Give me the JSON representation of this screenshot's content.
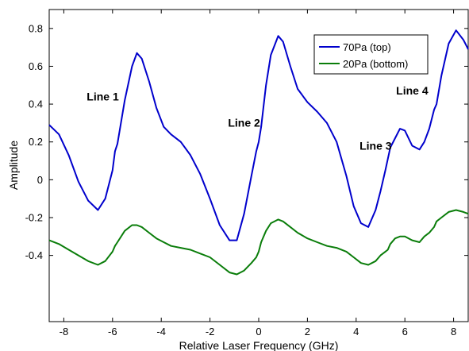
{
  "chart_data": {
    "type": "line",
    "xlabel": "Relative Laser Frequency (GHz)",
    "ylabel": "Amplitude",
    "xlim": [
      -8.6,
      8.6
    ],
    "ylim": [
      -0.75,
      0.9
    ],
    "xticks": [
      -8,
      -6,
      -4,
      -2,
      0,
      2,
      4,
      6,
      8
    ],
    "yticks": [
      -0.4,
      -0.2,
      0,
      0.2,
      0.4,
      0.6,
      0.8
    ],
    "grid": false,
    "legend_position": "top-right",
    "series": [
      {
        "name": "70Pa (top)",
        "color": "#0000cc",
        "x": [
          -8.6,
          -8.2,
          -7.8,
          -7.4,
          -7.0,
          -6.6,
          -6.3,
          -6.0,
          -5.9,
          -5.8,
          -5.5,
          -5.2,
          -5.0,
          -4.8,
          -4.5,
          -4.2,
          -3.9,
          -3.6,
          -3.2,
          -2.8,
          -2.4,
          -2.0,
          -1.6,
          -1.2,
          -0.9,
          -0.6,
          -0.3,
          -0.1,
          0.0,
          0.1,
          0.3,
          0.5,
          0.8,
          1.0,
          1.3,
          1.6,
          2.0,
          2.4,
          2.8,
          3.2,
          3.6,
          3.9,
          4.2,
          4.5,
          4.8,
          5.0,
          5.2,
          5.3,
          5.4,
          5.6,
          5.8,
          6.0,
          6.3,
          6.6,
          6.8,
          7.0,
          7.2,
          7.3,
          7.5,
          7.8,
          8.1,
          8.4,
          8.6
        ],
        "y": [
          0.29,
          0.24,
          0.13,
          -0.01,
          -0.11,
          -0.16,
          -0.1,
          0.05,
          0.15,
          0.19,
          0.42,
          0.6,
          0.67,
          0.64,
          0.52,
          0.38,
          0.28,
          0.24,
          0.2,
          0.13,
          0.03,
          -0.1,
          -0.24,
          -0.32,
          -0.32,
          -0.18,
          0.02,
          0.15,
          0.2,
          0.28,
          0.5,
          0.66,
          0.76,
          0.73,
          0.6,
          0.48,
          0.41,
          0.36,
          0.3,
          0.2,
          0.02,
          -0.14,
          -0.23,
          -0.25,
          -0.16,
          -0.06,
          0.05,
          0.11,
          0.17,
          0.22,
          0.27,
          0.26,
          0.18,
          0.16,
          0.2,
          0.27,
          0.37,
          0.4,
          0.55,
          0.72,
          0.79,
          0.74,
          0.69
        ]
      },
      {
        "name": "20Pa (bottom)",
        "color": "#0a7d0a",
        "x": [
          -8.6,
          -8.2,
          -7.8,
          -7.4,
          -7.0,
          -6.6,
          -6.3,
          -6.0,
          -5.9,
          -5.8,
          -5.5,
          -5.2,
          -5.0,
          -4.8,
          -4.5,
          -4.2,
          -3.9,
          -3.6,
          -3.2,
          -2.8,
          -2.4,
          -2.0,
          -1.6,
          -1.2,
          -0.9,
          -0.6,
          -0.3,
          -0.1,
          0.0,
          0.1,
          0.3,
          0.5,
          0.8,
          1.0,
          1.3,
          1.6,
          2.0,
          2.4,
          2.8,
          3.2,
          3.6,
          3.9,
          4.2,
          4.5,
          4.8,
          5.0,
          5.2,
          5.3,
          5.4,
          5.6,
          5.8,
          6.0,
          6.3,
          6.6,
          6.8,
          7.0,
          7.2,
          7.3,
          7.5,
          7.8,
          8.1,
          8.4,
          8.6
        ],
        "y": [
          -0.32,
          -0.34,
          -0.37,
          -0.4,
          -0.43,
          -0.45,
          -0.43,
          -0.38,
          -0.35,
          -0.33,
          -0.27,
          -0.24,
          -0.24,
          -0.25,
          -0.28,
          -0.31,
          -0.33,
          -0.35,
          -0.36,
          -0.37,
          -0.39,
          -0.41,
          -0.45,
          -0.49,
          -0.5,
          -0.48,
          -0.44,
          -0.41,
          -0.38,
          -0.33,
          -0.27,
          -0.23,
          -0.21,
          -0.22,
          -0.25,
          -0.28,
          -0.31,
          -0.33,
          -0.35,
          -0.36,
          -0.38,
          -0.41,
          -0.44,
          -0.45,
          -0.43,
          -0.4,
          -0.38,
          -0.37,
          -0.34,
          -0.31,
          -0.3,
          -0.3,
          -0.32,
          -0.33,
          -0.3,
          -0.28,
          -0.25,
          -0.22,
          -0.2,
          -0.17,
          -0.16,
          -0.17,
          -0.18
        ]
      }
    ],
    "annotations": [
      {
        "text": "Line 1",
        "x": -6.4,
        "y": 0.42
      },
      {
        "text": "Line 2",
        "x": -0.6,
        "y": 0.28
      },
      {
        "text": "Line 3",
        "x": 4.8,
        "y": 0.16
      },
      {
        "text": "Line 4",
        "x": 6.3,
        "y": 0.45
      }
    ]
  }
}
